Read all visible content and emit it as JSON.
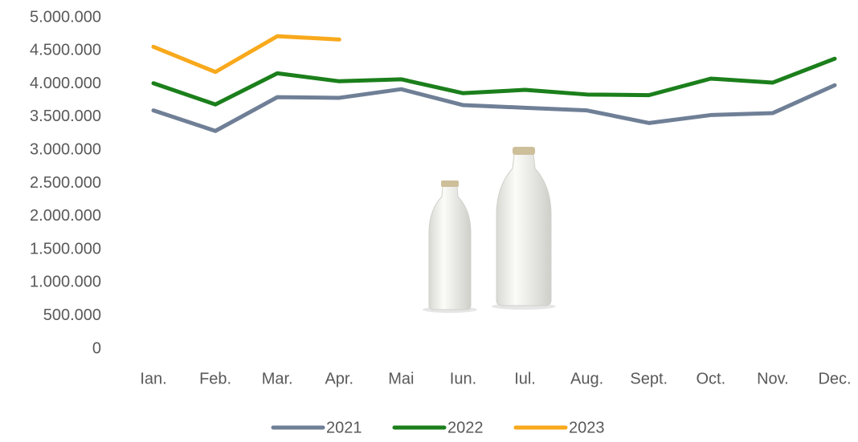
{
  "chart_data": {
    "type": "line",
    "categories": [
      "Ian.",
      "Feb.",
      "Mar.",
      "Apr.",
      "Mai",
      "Iun.",
      "Iul.",
      "Aug.",
      "Sept.",
      "Oct.",
      "Nov.",
      "Dec."
    ],
    "series": [
      {
        "name": "2021",
        "color": "#6f7f96",
        "values": [
          3600000,
          3290000,
          3800000,
          3790000,
          3920000,
          3680000,
          3640000,
          3600000,
          3410000,
          3530000,
          3560000,
          3980000
        ]
      },
      {
        "name": "2022",
        "color": "#1b7f1b",
        "values": [
          4010000,
          3690000,
          4160000,
          4040000,
          4070000,
          3860000,
          3910000,
          3840000,
          3830000,
          4080000,
          4020000,
          4380000
        ]
      },
      {
        "name": "2023",
        "color": "#f8a91c",
        "values": [
          4560000,
          4180000,
          4720000,
          4670000,
          null,
          null,
          null,
          null,
          null,
          null,
          null,
          null
        ]
      }
    ],
    "ylim": [
      0,
      5000000
    ],
    "yticks": [
      0,
      {
        "value": 500000,
        "label": "500.000"
      },
      {
        "value": 1000000,
        "label": "1.000.000"
      },
      {
        "value": 1500000,
        "label": "1.500.000"
      },
      {
        "value": 2000000,
        "label": "2.000.000"
      },
      {
        "value": 2500000,
        "label": "2.500.000"
      },
      {
        "value": 3000000,
        "label": "3.000.000"
      },
      {
        "value": 3500000,
        "label": "3.500.000"
      },
      {
        "value": 4000000,
        "label": "4.000.000"
      },
      {
        "value": 4500000,
        "label": "4.500.000"
      },
      {
        "value": 5000000,
        "label": "5.000.000"
      }
    ],
    "grid": false,
    "legend": "bottom"
  }
}
